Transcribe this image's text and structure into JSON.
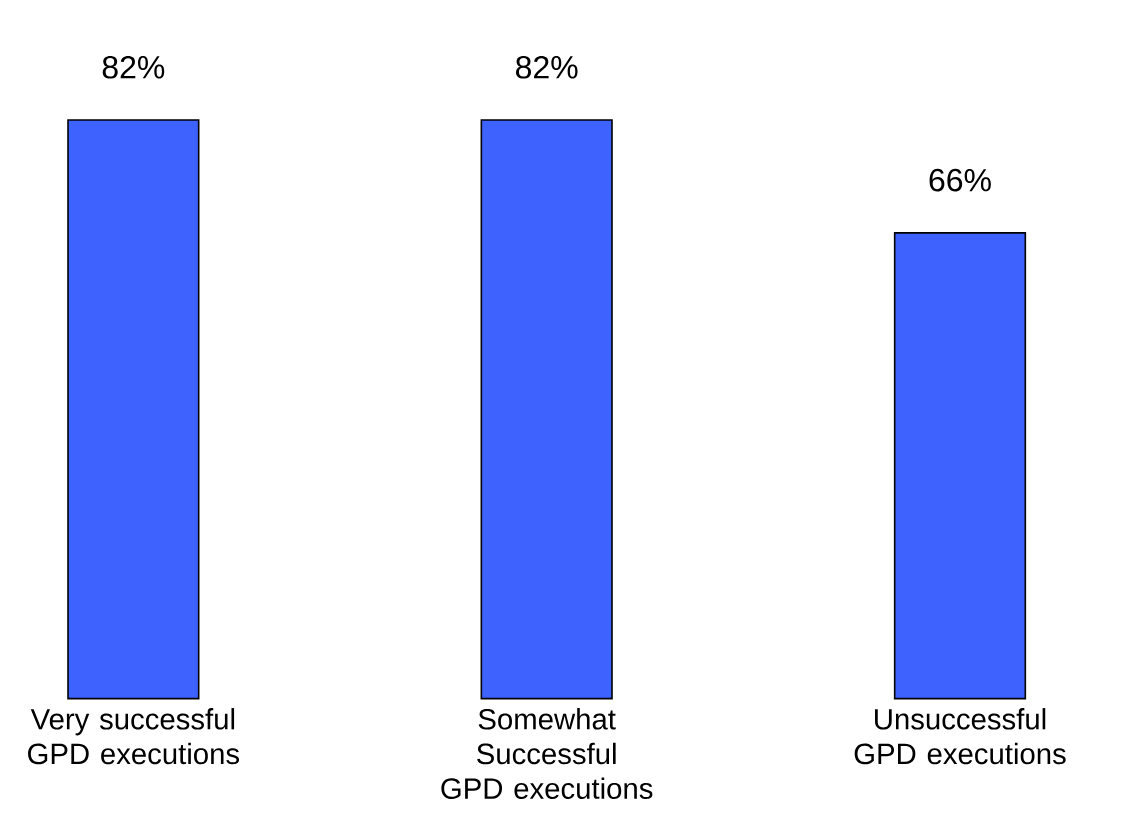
{
  "chart_data": {
    "type": "bar",
    "categories": [
      "Very successful GPD executions",
      "Somewhat Successful GPD executions",
      "Unsuccessful GPD executions"
    ],
    "values": [
      82,
      82,
      66
    ],
    "value_labels": [
      "82%",
      "82%",
      "66%"
    ],
    "color": "#3d62fe"
  }
}
